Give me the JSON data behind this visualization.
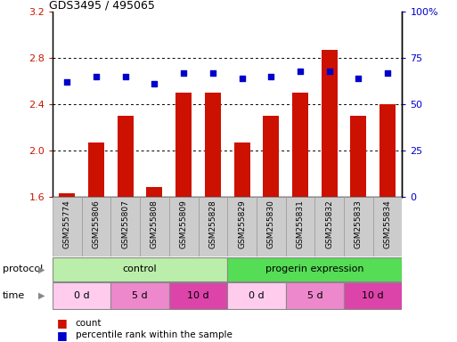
{
  "title": "GDS3495 / 495065",
  "samples": [
    "GSM255774",
    "GSM255806",
    "GSM255807",
    "GSM255808",
    "GSM255809",
    "GSM255828",
    "GSM255829",
    "GSM255830",
    "GSM255831",
    "GSM255832",
    "GSM255833",
    "GSM255834"
  ],
  "bar_values": [
    1.63,
    2.07,
    2.3,
    1.68,
    2.5,
    2.5,
    2.07,
    2.3,
    2.5,
    2.87,
    2.3,
    2.4
  ],
  "dot_values": [
    62,
    65,
    65,
    61,
    67,
    67,
    64,
    65,
    68,
    68,
    64,
    67
  ],
  "ylim_left": [
    1.6,
    3.2
  ],
  "ylim_right": [
    0,
    100
  ],
  "yticks_left": [
    1.6,
    2.0,
    2.4,
    2.8,
    3.2
  ],
  "yticks_right": [
    0,
    25,
    50,
    75,
    100
  ],
  "ytick_labels_right": [
    "0",
    "25",
    "50",
    "75",
    "100%"
  ],
  "bar_color": "#cc1100",
  "dot_color": "#0000cc",
  "bar_bottom": 1.6,
  "protocol_labels": [
    "control",
    "progerin expression"
  ],
  "protocol_ranges": [
    [
      0,
      6
    ],
    [
      6,
      12
    ]
  ],
  "protocol_colors": [
    "#bbeeaa",
    "#55dd55"
  ],
  "time_labels": [
    "0 d",
    "5 d",
    "10 d",
    "0 d",
    "5 d",
    "10 d"
  ],
  "time_ranges": [
    [
      0,
      2
    ],
    [
      2,
      4
    ],
    [
      4,
      6
    ],
    [
      6,
      8
    ],
    [
      8,
      10
    ],
    [
      10,
      12
    ]
  ],
  "time_colors": [
    "#ffccee",
    "#ee88cc",
    "#dd44aa",
    "#ffccee",
    "#ee88cc",
    "#dd44aa"
  ],
  "legend_count_label": "count",
  "legend_pct_label": "percentile rank within the sample",
  "bg_color": "#ffffff",
  "plot_bg": "#ffffff",
  "tick_color_left": "#cc1100",
  "tick_color_right": "#0000cc",
  "xtick_bg": "#cccccc",
  "xtick_border": "#999999"
}
